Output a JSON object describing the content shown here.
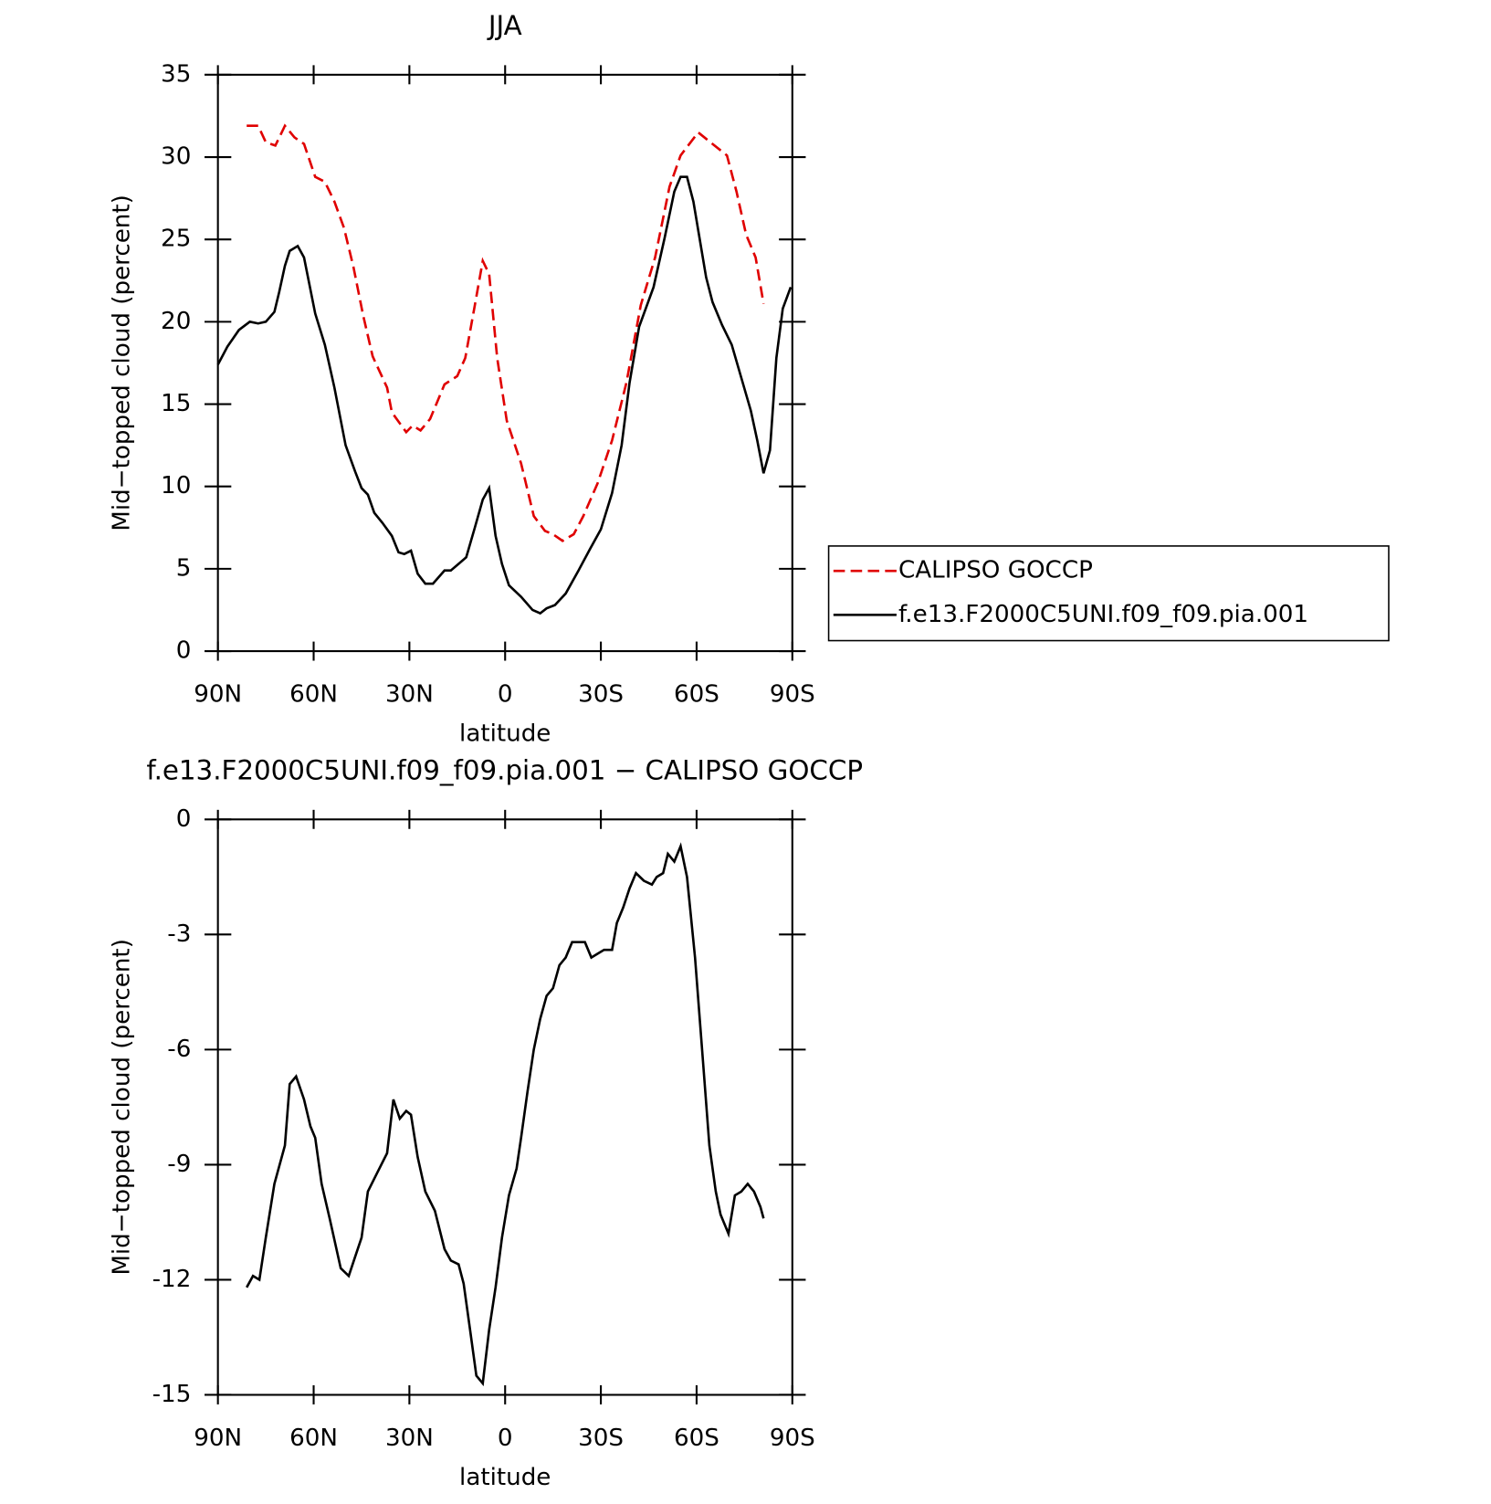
{
  "chart_data": [
    {
      "type": "line",
      "title": "JJA",
      "xlabel": "latitude",
      "ylabel": "Mid−topped cloud (percent)",
      "xlim": [
        90,
        -90
      ],
      "xticks": [
        {
          "value": 90,
          "label": "90N"
        },
        {
          "value": 60,
          "label": "60N"
        },
        {
          "value": 30,
          "label": "30N"
        },
        0,
        {
          "value": -30,
          "label": "30S"
        },
        {
          "value": -60,
          "label": "60S"
        },
        {
          "value": -90,
          "label": "90S"
        }
      ],
      "ylim": [
        0,
        35
      ],
      "yticks": [
        0,
        5,
        10,
        15,
        20,
        25,
        30,
        35
      ],
      "legend": "right",
      "series": [
        {
          "name": "CALIPSO GOCCP",
          "color": "#e00000",
          "dashed": true,
          "x": [
            81,
            77.4,
            75,
            72,
            69,
            66,
            63,
            59.5,
            56.5,
            53.5,
            50.5,
            47.5,
            44.5,
            41.5,
            37,
            35.5,
            31,
            29,
            26.5,
            23.5,
            19,
            15,
            12.5,
            9.5,
            7,
            5,
            2.5,
            -0.5,
            -5,
            -9,
            -12.5,
            -15,
            -18,
            -21.5,
            -24.5,
            -29,
            -33.5,
            -38,
            -42.5,
            -47,
            -51.5,
            -55,
            -60.5,
            -65,
            -69.5,
            -72.5,
            -75.5,
            -78.5,
            -81
          ],
          "values": [
            31.9,
            31.9,
            30.9,
            30.7,
            31.9,
            31.2,
            30.8,
            28.8,
            28.5,
            27.3,
            25.7,
            23.3,
            20.4,
            17.9,
            16.0,
            14.5,
            13.3,
            13.7,
            13.4,
            14.1,
            16.2,
            16.7,
            17.8,
            21.0,
            23.7,
            22.9,
            17.8,
            14.0,
            11.4,
            8.2,
            7.3,
            7.1,
            6.7,
            7.1,
            8.2,
            10.2,
            12.8,
            16.3,
            21.0,
            23.9,
            28.2,
            30.1,
            31.5,
            30.8,
            30.1,
            27.9,
            25.3,
            23.9,
            21.1
          ]
        },
        {
          "name": "f.e13.F2000C5UNI.f09_f09.pia.001",
          "color": "#000000",
          "dashed": false,
          "x": [
            90,
            87,
            83.4,
            80,
            77.4,
            75,
            72.3,
            70.8,
            69,
            67.5,
            65,
            63,
            59.5,
            56.5,
            53.5,
            50,
            47,
            45,
            43,
            41,
            38.5,
            35.5,
            33.4,
            31.6,
            29.5,
            27.4,
            25,
            22.6,
            19,
            17,
            14.6,
            12.2,
            9.5,
            7,
            5,
            3,
            1,
            -1.2,
            -5,
            -8.6,
            -11,
            -13,
            -15.6,
            -19,
            -23,
            -26.6,
            -30,
            -33.5,
            -36.5,
            -39,
            -42,
            -46.5,
            -50,
            -53,
            -55,
            -57,
            -59,
            -63,
            -65,
            -68,
            -71,
            -74,
            -77,
            -79,
            -81,
            -83,
            -85,
            -87,
            -89.5
          ],
          "values": [
            17.4,
            18.5,
            19.5,
            20.0,
            19.9,
            20.0,
            20.6,
            21.8,
            23.4,
            24.3,
            24.6,
            23.9,
            20.5,
            18.6,
            16.0,
            12.5,
            10.9,
            9.9,
            9.5,
            8.4,
            7.8,
            7.0,
            6.0,
            5.9,
            6.1,
            4.7,
            4.1,
            4.1,
            4.9,
            4.9,
            5.3,
            5.7,
            7.5,
            9.2,
            9.9,
            7.0,
            5.3,
            4.0,
            3.3,
            2.5,
            2.3,
            2.6,
            2.8,
            3.5,
            4.9,
            6.2,
            7.4,
            9.6,
            12.5,
            16.3,
            19.7,
            22.1,
            25.1,
            27.9,
            28.8,
            28.8,
            27.3,
            22.7,
            21.2,
            19.8,
            18.6,
            16.6,
            14.6,
            12.8,
            10.8,
            12.2,
            17.8,
            20.8,
            22.1
          ]
        }
      ]
    },
    {
      "type": "line",
      "title": "f.e13.F2000C5UNI.f09_f09.pia.001 − CALIPSO GOCCP",
      "xlabel": "latitude",
      "ylabel": "Mid−topped cloud (percent)",
      "xlim": [
        90,
        -90
      ],
      "xticks": [
        {
          "value": 90,
          "label": "90N"
        },
        {
          "value": 60,
          "label": "60N"
        },
        {
          "value": 30,
          "label": "30N"
        },
        0,
        {
          "value": -30,
          "label": "30S"
        },
        {
          "value": -60,
          "label": "60S"
        },
        {
          "value": -90,
          "label": "90S"
        }
      ],
      "ylim": [
        -15,
        0
      ],
      "yticks": [
        0,
        -3,
        -6,
        -9,
        -12,
        -15
      ],
      "series": [
        {
          "color": "#000000",
          "dashed": false,
          "x": [
            81,
            79,
            77,
            75,
            72.3,
            69,
            67.5,
            65.5,
            63,
            61,
            59.5,
            57.5,
            55,
            51.5,
            49,
            47,
            45,
            43,
            40,
            37,
            35,
            33,
            31,
            29.5,
            27.4,
            25,
            22,
            19,
            17,
            14.6,
            13,
            11,
            9,
            7,
            5,
            3,
            1,
            -1.2,
            -3.6,
            -5,
            -7,
            -9,
            -11,
            -13,
            -15,
            -17,
            -19,
            -21,
            -23,
            -25,
            -27,
            -29,
            -31,
            -33.5,
            -35,
            -37,
            -39,
            -41,
            -43.5,
            -46,
            -47.5,
            -49.5,
            -51,
            -53,
            -55,
            -57,
            -59.5,
            -62,
            -64,
            -66,
            -67.5,
            -70,
            -72,
            -74,
            -76,
            -78,
            -80,
            -81
          ],
          "values": [
            -12.2,
            -11.9,
            -12.0,
            -10.9,
            -9.5,
            -8.5,
            -6.9,
            -6.7,
            -7.3,
            -8.0,
            -8.3,
            -9.5,
            -10.4,
            -11.7,
            -11.9,
            -11.4,
            -10.9,
            -9.7,
            -9.2,
            -8.7,
            -7.3,
            -7.8,
            -7.6,
            -7.7,
            -8.8,
            -9.7,
            -10.2,
            -11.2,
            -11.5,
            -11.6,
            -12.1,
            -13.3,
            -14.5,
            -14.7,
            -13.3,
            -12.2,
            -10.9,
            -9.8,
            -9.1,
            -8.3,
            -7.1,
            -6.0,
            -5.2,
            -4.6,
            -4.4,
            -3.8,
            -3.6,
            -3.2,
            -3.2,
            -3.2,
            -3.6,
            -3.5,
            -3.4,
            -3.4,
            -2.7,
            -2.3,
            -1.8,
            -1.4,
            -1.6,
            -1.7,
            -1.5,
            -1.4,
            -0.9,
            -1.1,
            -0.7,
            -1.5,
            -3.6,
            -6.3,
            -8.5,
            -9.7,
            -10.3,
            -10.8,
            -9.8,
            -9.7,
            -9.5,
            -9.7,
            -10.1,
            -10.4
          ]
        }
      ]
    }
  ]
}
